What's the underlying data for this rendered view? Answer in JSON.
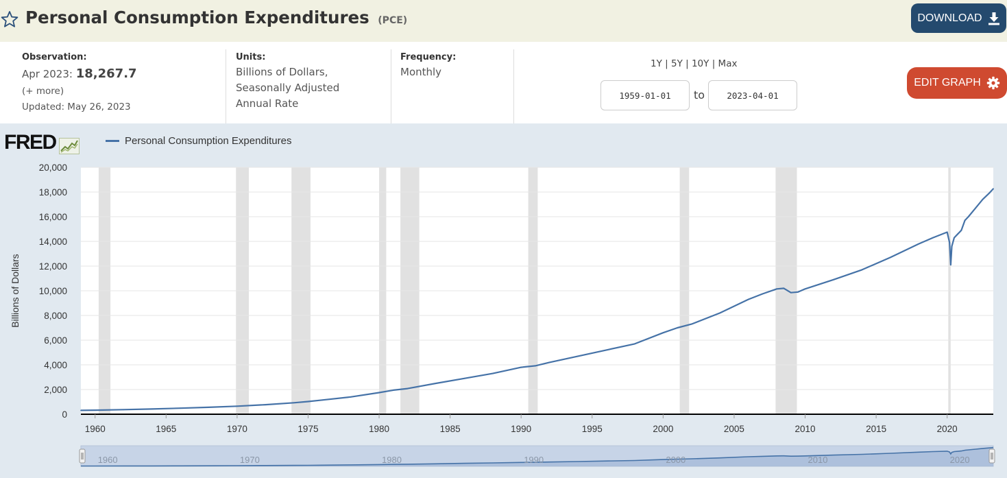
{
  "header": {
    "title": "Personal Consumption Expenditures",
    "series_id": "(PCE)",
    "download_label": "DOWNLOAD"
  },
  "meta": {
    "observation_label": "Observation:",
    "observation_date": "Apr 2023:",
    "observation_value": "18,267.7",
    "more_link": "(+ more)",
    "updated": "Updated: May 26, 2023",
    "units_label": "Units:",
    "units_lines": [
      "Billions of Dollars,",
      "Seasonally Adjusted",
      "Annual Rate"
    ],
    "frequency_label": "Frequency:",
    "frequency_value": "Monthly"
  },
  "controls": {
    "range_links": [
      "1Y",
      "5Y",
      "10Y",
      "Max"
    ],
    "start_date": "1959-01-01",
    "to_label": "to",
    "end_date": "2023-04-01",
    "edit_label": "EDIT GRAPH"
  },
  "logo": {
    "text": "FRED"
  },
  "colors": {
    "series": "#4572a7",
    "recession": "#e1e1e1",
    "chart_bg": "#e1e9f0",
    "download_bg": "#244a6e",
    "edit_bg": "#cf4a30"
  },
  "chart_data": {
    "type": "line",
    "ylabel": "Billions of Dollars",
    "ylim": [
      0,
      20000
    ],
    "yticks": [
      0,
      2000,
      4000,
      6000,
      8000,
      10000,
      12000,
      14000,
      16000,
      18000,
      20000
    ],
    "ytick_labels": [
      "0",
      "2,000",
      "4,000",
      "6,000",
      "8,000",
      "10,000",
      "12,000",
      "14,000",
      "16,000",
      "18,000",
      "20,000"
    ],
    "xlim": [
      1959.0,
      2023.25
    ],
    "xticks": [
      1960,
      1965,
      1970,
      1975,
      1980,
      1985,
      1990,
      1995,
      2000,
      2005,
      2010,
      2015,
      2020
    ],
    "navigator_ticks": [
      1960,
      1970,
      1980,
      1990,
      2000,
      2010,
      2020
    ],
    "grid": true,
    "legend": "top-left",
    "series": [
      {
        "name": "Personal Consumption Expenditures",
        "x": [
          1959.0,
          1960.0,
          1962.0,
          1964.0,
          1966.0,
          1968.0,
          1970.0,
          1972.0,
          1974.0,
          1975.0,
          1976.0,
          1978.0,
          1980.0,
          1981.0,
          1982.0,
          1984.0,
          1986.0,
          1988.0,
          1990.0,
          1991.0,
          1992.0,
          1994.0,
          1996.0,
          1998.0,
          2000.0,
          2001.0,
          2002.0,
          2004.0,
          2006.0,
          2007.0,
          2008.0,
          2008.5,
          2009.0,
          2009.5,
          2010.0,
          2012.0,
          2014.0,
          2016.0,
          2018.0,
          2019.0,
          2020.0,
          2020.17,
          2020.25,
          2020.33,
          2020.5,
          2020.75,
          2021.0,
          2021.25,
          2021.5,
          2022.0,
          2022.5,
          2023.0,
          2023.25
        ],
        "y": [
          310,
          330,
          370,
          420,
          490,
          560,
          650,
          770,
          930,
          1030,
          1150,
          1400,
          1750,
          1950,
          2080,
          2500,
          2900,
          3300,
          3800,
          3920,
          4200,
          4700,
          5200,
          5700,
          6600,
          7000,
          7300,
          8200,
          9300,
          9750,
          10150,
          10200,
          9850,
          9900,
          10150,
          10900,
          11700,
          12700,
          13800,
          14300,
          14750,
          13900,
          12100,
          13600,
          14300,
          14600,
          14900,
          15700,
          16000,
          16700,
          17400,
          17950,
          18267.7
        ]
      }
    ],
    "recessions": [
      [
        1960.25,
        1961.08
      ],
      [
        1969.92,
        1970.83
      ],
      [
        1973.83,
        1975.17
      ],
      [
        1980.0,
        1980.5
      ],
      [
        1981.5,
        1982.83
      ],
      [
        1990.5,
        1991.17
      ],
      [
        2001.17,
        2001.83
      ],
      [
        2007.92,
        2009.42
      ],
      [
        2020.08,
        2020.25
      ]
    ]
  }
}
